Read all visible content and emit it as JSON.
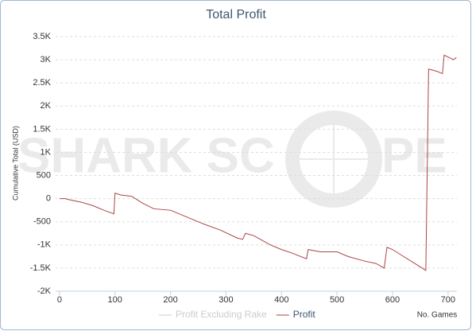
{
  "chart_data": {
    "type": "line",
    "title": "Total Profit",
    "x_label": "No. Games",
    "y_label": "Cumulative Total (USD)",
    "watermark": [
      "SHARK SC",
      "PE"
    ],
    "xlim": [
      -7,
      716
    ],
    "xticks": [
      0,
      100,
      200,
      300,
      400,
      500,
      600,
      700
    ],
    "ylim": [
      -2000,
      3500
    ],
    "yticks": [
      {
        "value": -2000,
        "label": "-2K"
      },
      {
        "value": -1500,
        "label": "-1.5K"
      },
      {
        "value": -1000,
        "label": "-1K"
      },
      -500,
      0,
      500,
      {
        "value": 1000,
        "label": "1K"
      },
      {
        "value": 1500,
        "label": "1.5K"
      },
      {
        "value": 2000,
        "label": "2K"
      },
      {
        "value": 2500,
        "label": "2.5K"
      },
      {
        "value": 3000,
        "label": "3K"
      },
      {
        "value": 3500,
        "label": "3.5K"
      }
    ],
    "grid": true,
    "series": [
      {
        "name": "Profit Excluding Rake",
        "color": "#cccccc",
        "visible": false
      },
      {
        "name": "Profit",
        "color": "#aa4643",
        "visible": true,
        "x": [
          0,
          10,
          20,
          40,
          60,
          80,
          98,
          100,
          110,
          130,
          150,
          170,
          200,
          230,
          260,
          290,
          320,
          330,
          335,
          350,
          380,
          400,
          420,
          445,
          448,
          470,
          500,
          520,
          550,
          570,
          585,
          590,
          600,
          620,
          640,
          660,
          665,
          680,
          690,
          693,
          710,
          715
        ],
        "values": [
          0,
          0,
          -30,
          -80,
          -150,
          -250,
          -330,
          120,
          80,
          50,
          -100,
          -220,
          -250,
          -400,
          -550,
          -680,
          -850,
          -880,
          -750,
          -800,
          -1000,
          -1100,
          -1180,
          -1300,
          -1100,
          -1150,
          -1150,
          -1250,
          -1350,
          -1400,
          -1500,
          -1050,
          -1100,
          -1250,
          -1400,
          -1550,
          2800,
          2750,
          2700,
          3100,
          3000,
          3050
        ]
      }
    ]
  }
}
